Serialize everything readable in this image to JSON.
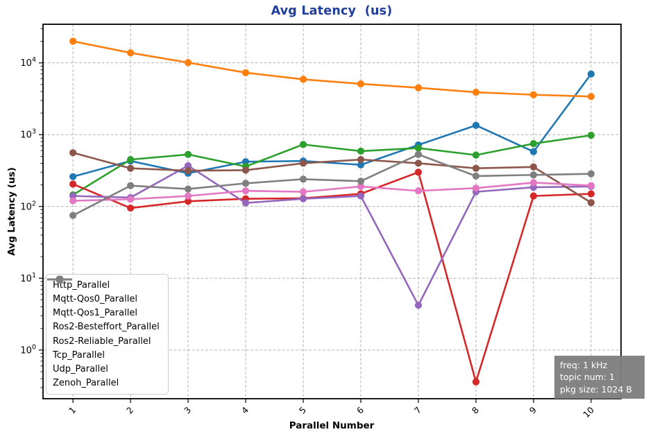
{
  "chart_data": {
    "type": "line",
    "title": "Avg Latency  (us)",
    "xlabel": "Parallel Number",
    "ylabel": "Avg Latency (us)",
    "yscale": "log",
    "ylim": [
      0.21,
      34500
    ],
    "xticks": [
      1,
      2,
      3,
      4,
      5,
      6,
      7,
      8,
      9,
      10
    ],
    "yticks": [
      "10^0",
      "10^1",
      "10^2",
      "10^3",
      "10^4"
    ],
    "grid": "dashed-major",
    "legend_position": "lower left",
    "x": [
      1,
      2,
      3,
      4,
      5,
      6,
      7,
      8,
      9,
      10
    ],
    "series": [
      {
        "name": "Http_Parallel",
        "color": "#1f77b4",
        "marker": "circle",
        "values": [
          260,
          430,
          290,
          420,
          430,
          380,
          720,
          1350,
          580,
          7000
        ]
      },
      {
        "name": "Mqtt-Qos0_Parallel",
        "color": "#ff7f0e",
        "marker": "circle",
        "values": [
          20000,
          13800,
          10100,
          7300,
          5900,
          5100,
          4500,
          3900,
          3600,
          3400
        ]
      },
      {
        "name": "Mqtt-Qos1_Parallel",
        "color": "#2ca02c",
        "marker": "circle",
        "values": [
          145,
          450,
          530,
          360,
          730,
          590,
          650,
          520,
          750,
          980
        ]
      },
      {
        "name": "Ros2-Besteffort_Parallel",
        "color": "#d62728",
        "marker": "circle",
        "values": [
          205,
          95,
          118,
          128,
          130,
          150,
          300,
          0.36,
          140,
          150
        ]
      },
      {
        "name": "Ros2-Reliable_Parallel",
        "color": "#9467bd",
        "marker": "circle",
        "values": [
          140,
          133,
          370,
          112,
          128,
          140,
          4.2,
          160,
          185,
          190
        ]
      },
      {
        "name": "Tcp_Parallel",
        "color": "#8c564b",
        "marker": "circle",
        "values": [
          560,
          340,
          315,
          320,
          400,
          450,
          400,
          340,
          355,
          113
        ]
      },
      {
        "name": "Udp_Parallel",
        "color": "#e377c2",
        "marker": "circle",
        "values": [
          120,
          126,
          140,
          165,
          160,
          190,
          165,
          180,
          215,
          195
        ]
      },
      {
        "name": "Zenoh_Parallel",
        "color": "#7f7f7f",
        "marker": "circle",
        "values": [
          75,
          195,
          175,
          210,
          240,
          225,
          530,
          265,
          275,
          285
        ]
      }
    ]
  },
  "annotation": {
    "lines": [
      "freq: 1 kHz",
      "topic num: 1",
      "pkg size: 1024 B"
    ]
  },
  "style": {
    "title_color": "#203d9a",
    "grid_color": "#b3b3b3",
    "spine_color": "#000000",
    "annotation_bg": "#7f7f7f",
    "annotation_text": "#ffffff"
  }
}
